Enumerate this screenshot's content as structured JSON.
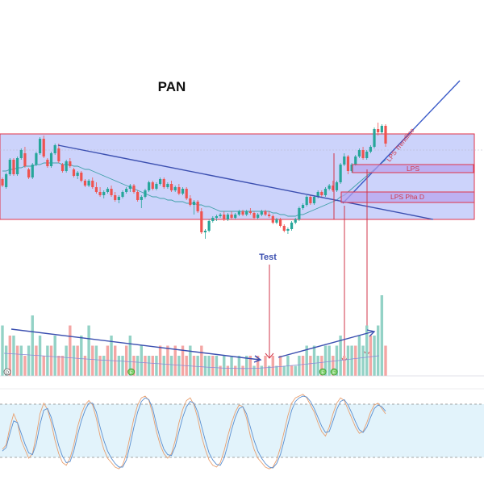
{
  "chart_data": {
    "type": "candlestick",
    "title": "PAN",
    "grid": false,
    "price_panel": {
      "annotations": {
        "test": "Test",
        "lps": "LPS",
        "lps_pha_d": "LPS Pha D",
        "lps_trendline": "LPS Trendline"
      },
      "candles": [
        {
          "o": 50,
          "h": 51,
          "l": 45,
          "c": 46
        },
        {
          "o": 45,
          "h": 54,
          "l": 44,
          "c": 53
        },
        {
          "o": 53,
          "h": 63,
          "l": 52,
          "c": 62
        },
        {
          "o": 62,
          "h": 63,
          "l": 52,
          "c": 53
        },
        {
          "o": 53,
          "h": 64,
          "l": 52,
          "c": 63
        },
        {
          "o": 63,
          "h": 69,
          "l": 62,
          "c": 68
        },
        {
          "o": 66,
          "h": 70,
          "l": 57,
          "c": 58
        },
        {
          "o": 56,
          "h": 57,
          "l": 50,
          "c": 51
        },
        {
          "o": 51,
          "h": 60,
          "l": 50,
          "c": 59
        },
        {
          "o": 59,
          "h": 67,
          "l": 58,
          "c": 66
        },
        {
          "o": 66,
          "h": 76,
          "l": 65,
          "c": 75
        },
        {
          "o": 75,
          "h": 77,
          "l": 63,
          "c": 64
        },
        {
          "o": 62,
          "h": 63,
          "l": 57,
          "c": 58
        },
        {
          "o": 58,
          "h": 67,
          "l": 57,
          "c": 66
        },
        {
          "o": 66,
          "h": 72,
          "l": 65,
          "c": 71
        },
        {
          "o": 69,
          "h": 72,
          "l": 60,
          "c": 61
        },
        {
          "o": 59,
          "h": 60,
          "l": 54,
          "c": 55
        },
        {
          "o": 55,
          "h": 62,
          "l": 54,
          "c": 61
        },
        {
          "o": 61,
          "h": 63,
          "l": 57,
          "c": 58
        },
        {
          "o": 56,
          "h": 57,
          "l": 51,
          "c": 52
        },
        {
          "o": 52,
          "h": 55,
          "l": 50,
          "c": 54
        },
        {
          "o": 54,
          "h": 55,
          "l": 48,
          "c": 49
        },
        {
          "o": 49,
          "h": 50,
          "l": 45,
          "c": 46
        },
        {
          "o": 46,
          "h": 50,
          "l": 45,
          "c": 49
        },
        {
          "o": 49,
          "h": 51,
          "l": 44,
          "c": 45
        },
        {
          "o": 45,
          "h": 48,
          "l": 41,
          "c": 42
        },
        {
          "o": 42,
          "h": 45,
          "l": 39,
          "c": 40
        },
        {
          "o": 40,
          "h": 43,
          "l": 38,
          "c": 42
        },
        {
          "o": 42,
          "h": 45,
          "l": 41,
          "c": 44
        },
        {
          "o": 44,
          "h": 46,
          "l": 39,
          "c": 40
        },
        {
          "o": 40,
          "h": 42,
          "l": 36,
          "c": 37
        },
        {
          "o": 37,
          "h": 40,
          "l": 35,
          "c": 39
        },
        {
          "o": 39,
          "h": 43,
          "l": 38,
          "c": 42
        },
        {
          "o": 42,
          "h": 45,
          "l": 41,
          "c": 44
        },
        {
          "o": 44,
          "h": 47,
          "l": 42,
          "c": 46
        },
        {
          "o": 46,
          "h": 47,
          "l": 41,
          "c": 42
        },
        {
          "o": 42,
          "h": 43,
          "l": 36,
          "c": 37
        },
        {
          "o": 37,
          "h": 40,
          "l": 32,
          "c": 39
        },
        {
          "o": 39,
          "h": 44,
          "l": 38,
          "c": 43
        },
        {
          "o": 43,
          "h": 49,
          "l": 42,
          "c": 48
        },
        {
          "o": 48,
          "h": 49,
          "l": 43,
          "c": 44
        },
        {
          "o": 44,
          "h": 48,
          "l": 43,
          "c": 47
        },
        {
          "o": 47,
          "h": 51,
          "l": 46,
          "c": 50
        },
        {
          "o": 50,
          "h": 51,
          "l": 44,
          "c": 45
        },
        {
          "o": 45,
          "h": 48,
          "l": 44,
          "c": 47
        },
        {
          "o": 47,
          "h": 49,
          "l": 42,
          "c": 43
        },
        {
          "o": 43,
          "h": 46,
          "l": 42,
          "c": 45
        },
        {
          "o": 45,
          "h": 47,
          "l": 40,
          "c": 41
        },
        {
          "o": 41,
          "h": 45,
          "l": 40,
          "c": 44
        },
        {
          "o": 44,
          "h": 45,
          "l": 37,
          "c": 38
        },
        {
          "o": 38,
          "h": 40,
          "l": 33,
          "c": 34
        },
        {
          "o": 34,
          "h": 37,
          "l": 28,
          "c": 36
        },
        {
          "o": 36,
          "h": 37,
          "l": 29,
          "c": 30
        },
        {
          "o": 30,
          "h": 32,
          "l": 16,
          "c": 17
        },
        {
          "o": 17,
          "h": 19,
          "l": 13,
          "c": 18
        },
        {
          "o": 18,
          "h": 25,
          "l": 17,
          "c": 24
        },
        {
          "o": 24,
          "h": 27,
          "l": 23,
          "c": 26
        },
        {
          "o": 26,
          "h": 28,
          "l": 24,
          "c": 27
        },
        {
          "o": 27,
          "h": 29,
          "l": 26,
          "c": 28
        },
        {
          "o": 28,
          "h": 30,
          "l": 24,
          "c": 25
        },
        {
          "o": 25,
          "h": 29,
          "l": 24,
          "c": 28
        },
        {
          "o": 28,
          "h": 30,
          "l": 25,
          "c": 26
        },
        {
          "o": 26,
          "h": 29,
          "l": 25,
          "c": 28
        },
        {
          "o": 28,
          "h": 31,
          "l": 27,
          "c": 30
        },
        {
          "o": 30,
          "h": 31,
          "l": 27,
          "c": 28
        },
        {
          "o": 28,
          "h": 31,
          "l": 27,
          "c": 30
        },
        {
          "o": 30,
          "h": 32,
          "l": 28,
          "c": 29
        },
        {
          "o": 29,
          "h": 30,
          "l": 25,
          "c": 26
        },
        {
          "o": 26,
          "h": 29,
          "l": 25,
          "c": 28
        },
        {
          "o": 28,
          "h": 31,
          "l": 27,
          "c": 30
        },
        {
          "o": 30,
          "h": 31,
          "l": 27,
          "c": 28
        },
        {
          "o": 28,
          "h": 30,
          "l": 26,
          "c": 27
        },
        {
          "o": 27,
          "h": 28,
          "l": 22,
          "c": 23
        },
        {
          "o": 23,
          "h": 26,
          "l": 22,
          "c": 25
        },
        {
          "o": 25,
          "h": 26,
          "l": 20,
          "c": 21
        },
        {
          "o": 21,
          "h": 22,
          "l": 17,
          "c": 18
        },
        {
          "o": 18,
          "h": 20,
          "l": 16,
          "c": 19
        },
        {
          "o": 19,
          "h": 24,
          "l": 18,
          "c": 23
        },
        {
          "o": 23,
          "h": 26,
          "l": 22,
          "c": 25
        },
        {
          "o": 25,
          "h": 33,
          "l": 24,
          "c": 32
        },
        {
          "o": 32,
          "h": 35,
          "l": 31,
          "c": 34
        },
        {
          "o": 34,
          "h": 40,
          "l": 33,
          "c": 39
        },
        {
          "o": 39,
          "h": 40,
          "l": 34,
          "c": 35
        },
        {
          "o": 35,
          "h": 40,
          "l": 34,
          "c": 39
        },
        {
          "o": 39,
          "h": 43,
          "l": 38,
          "c": 42
        },
        {
          "o": 42,
          "h": 43,
          "l": 39,
          "c": 40
        },
        {
          "o": 40,
          "h": 45,
          "l": 39,
          "c": 44
        },
        {
          "o": 44,
          "h": 47,
          "l": 43,
          "c": 46
        },
        {
          "o": 46,
          "h": 49,
          "l": 42,
          "c": 43
        },
        {
          "o": 43,
          "h": 49,
          "l": 42,
          "c": 48
        },
        {
          "o": 48,
          "h": 60,
          "l": 47,
          "c": 59
        },
        {
          "o": 59,
          "h": 66,
          "l": 58,
          "c": 64
        },
        {
          "o": 64,
          "h": 65,
          "l": 53,
          "c": 55
        },
        {
          "o": 55,
          "h": 60,
          "l": 54,
          "c": 59
        },
        {
          "o": 59,
          "h": 65,
          "l": 58,
          "c": 64
        },
        {
          "o": 64,
          "h": 69,
          "l": 63,
          "c": 68
        },
        {
          "o": 68,
          "h": 70,
          "l": 62,
          "c": 63
        },
        {
          "o": 63,
          "h": 68,
          "l": 62,
          "c": 67
        },
        {
          "o": 67,
          "h": 71,
          "l": 66,
          "c": 70
        },
        {
          "o": 70,
          "h": 82,
          "l": 69,
          "c": 81
        },
        {
          "o": 81,
          "h": 85,
          "l": 77,
          "c": 79
        },
        {
          "o": 79,
          "h": 84,
          "l": 78,
          "c": 83
        },
        {
          "o": 83,
          "h": 84,
          "l": 70,
          "c": 72
        }
      ],
      "ma_series": [
        55,
        55,
        56,
        56,
        57,
        57,
        58,
        58,
        58,
        59,
        59,
        60,
        60,
        60,
        60,
        60,
        59,
        59,
        59,
        58,
        58,
        57,
        56,
        56,
        55,
        54,
        53,
        52,
        51,
        50,
        49,
        48,
        47,
        46,
        45,
        44,
        43,
        42,
        41,
        40,
        39,
        39,
        38,
        38,
        37,
        37,
        36,
        36,
        36,
        35,
        35,
        35,
        34,
        34,
        33,
        33,
        32,
        31,
        30,
        30,
        30,
        30,
        30,
        30,
        30,
        30,
        30,
        30,
        30,
        30,
        30,
        30,
        29,
        29,
        28,
        28,
        27,
        27,
        27,
        28,
        28,
        29,
        30,
        31,
        32,
        33,
        34,
        35,
        36,
        37,
        39,
        40,
        42,
        44,
        46,
        48,
        50,
        52,
        54,
        56,
        58,
        60,
        62
      ]
    },
    "volume_panel": {
      "values": [
        5,
        3,
        4,
        4,
        3,
        3,
        2,
        3,
        6,
        3,
        4,
        2,
        3,
        3,
        4,
        2,
        2,
        3,
        5,
        3,
        3,
        4,
        2,
        5,
        3,
        3,
        2,
        2,
        3,
        4,
        3,
        2,
        2,
        3,
        4,
        2,
        2,
        3,
        2,
        2,
        2,
        2,
        3,
        2,
        3,
        2,
        3,
        2,
        3,
        2,
        3,
        2,
        2,
        3,
        2,
        2,
        2,
        2,
        1,
        2,
        1,
        2,
        1,
        2,
        1,
        2,
        2,
        1,
        2,
        1,
        2,
        1,
        2,
        1,
        2,
        1,
        2,
        1,
        1,
        2,
        2,
        3,
        2,
        3,
        2,
        2,
        3,
        3,
        2,
        3,
        4,
        2,
        3,
        3,
        3,
        4,
        3,
        5,
        4,
        4,
        5,
        8,
        3
      ],
      "up": [
        true,
        true,
        false,
        true,
        false,
        true,
        false,
        true,
        true,
        false,
        true,
        false,
        true,
        false,
        true,
        false,
        false,
        true,
        false,
        true,
        false,
        true,
        false,
        true,
        false,
        true,
        false,
        true,
        false,
        true,
        false,
        true,
        true,
        false,
        true,
        false,
        true,
        true,
        false,
        true,
        false,
        true,
        false,
        true,
        false,
        true,
        false,
        true,
        false,
        false,
        true,
        false,
        true,
        false,
        true,
        true,
        false,
        true,
        false,
        true,
        false,
        true,
        false,
        true,
        false,
        true,
        false,
        true,
        false,
        true,
        false,
        true,
        false,
        true,
        false,
        true,
        true,
        false,
        true,
        true,
        false,
        true,
        false,
        true,
        true,
        false,
        true,
        true,
        false,
        true,
        true,
        false,
        true,
        true,
        false,
        true,
        true,
        true,
        false,
        true,
        true,
        true,
        false
      ],
      "event_markers": [
        {
          "index": 0,
          "symbol": "D"
        },
        {
          "index": 33,
          "symbol": "E"
        },
        {
          "index": 84,
          "symbol": "E"
        },
        {
          "index": 87,
          "symbol": "E"
        }
      ]
    },
    "oscillator_panel": {
      "series": [
        {
          "name": "",
          "values": [
            30,
            35,
            55,
            70,
            60,
            40,
            30,
            20,
            25,
            45,
            70,
            82,
            75,
            60,
            40,
            25,
            15,
            12,
            20,
            35,
            55,
            70,
            80,
            85,
            80,
            65,
            45,
            30,
            20,
            15,
            10,
            8,
            12,
            25,
            45,
            65,
            80,
            88,
            90,
            85,
            70,
            50,
            35,
            25,
            20,
            25,
            40,
            60,
            75,
            85,
            88,
            80,
            65,
            45,
            30,
            18,
            12,
            10,
            15,
            28,
            45,
            60,
            72,
            80,
            78,
            65,
            45,
            30,
            20,
            15,
            10,
            8,
            10,
            18,
            32,
            50,
            68,
            82,
            88,
            90,
            92,
            88,
            80,
            72,
            60,
            50,
            45,
            55,
            70,
            82,
            88,
            85,
            75,
            65,
            55,
            48,
            50,
            60,
            72,
            80,
            82,
            76,
            70
          ]
        },
        {
          "name": "",
          "values": [
            28,
            32,
            48,
            62,
            60,
            48,
            36,
            26,
            24,
            36,
            58,
            74,
            76,
            66,
            50,
            34,
            22,
            15,
            16,
            28,
            46,
            62,
            74,
            82,
            82,
            72,
            55,
            40,
            28,
            20,
            14,
            10,
            10,
            18,
            35,
            55,
            72,
            84,
            88,
            86,
            76,
            58,
            42,
            30,
            24,
            23,
            33,
            50,
            66,
            78,
            84,
            82,
            72,
            56,
            40,
            26,
            18,
            13,
            12,
            20,
            35,
            52,
            66,
            76,
            78,
            70,
            55,
            40,
            28,
            20,
            14,
            10,
            9,
            14,
            24,
            40,
            58,
            74,
            84,
            88,
            90,
            89,
            84,
            76,
            66,
            56,
            49,
            50,
            62,
            75,
            84,
            86,
            80,
            71,
            61,
            52,
            49,
            55,
            66,
            76,
            80,
            78,
            73
          ]
        }
      ],
      "overbought": 80,
      "oversold": 20,
      "ylim": [
        0,
        100
      ]
    }
  }
}
